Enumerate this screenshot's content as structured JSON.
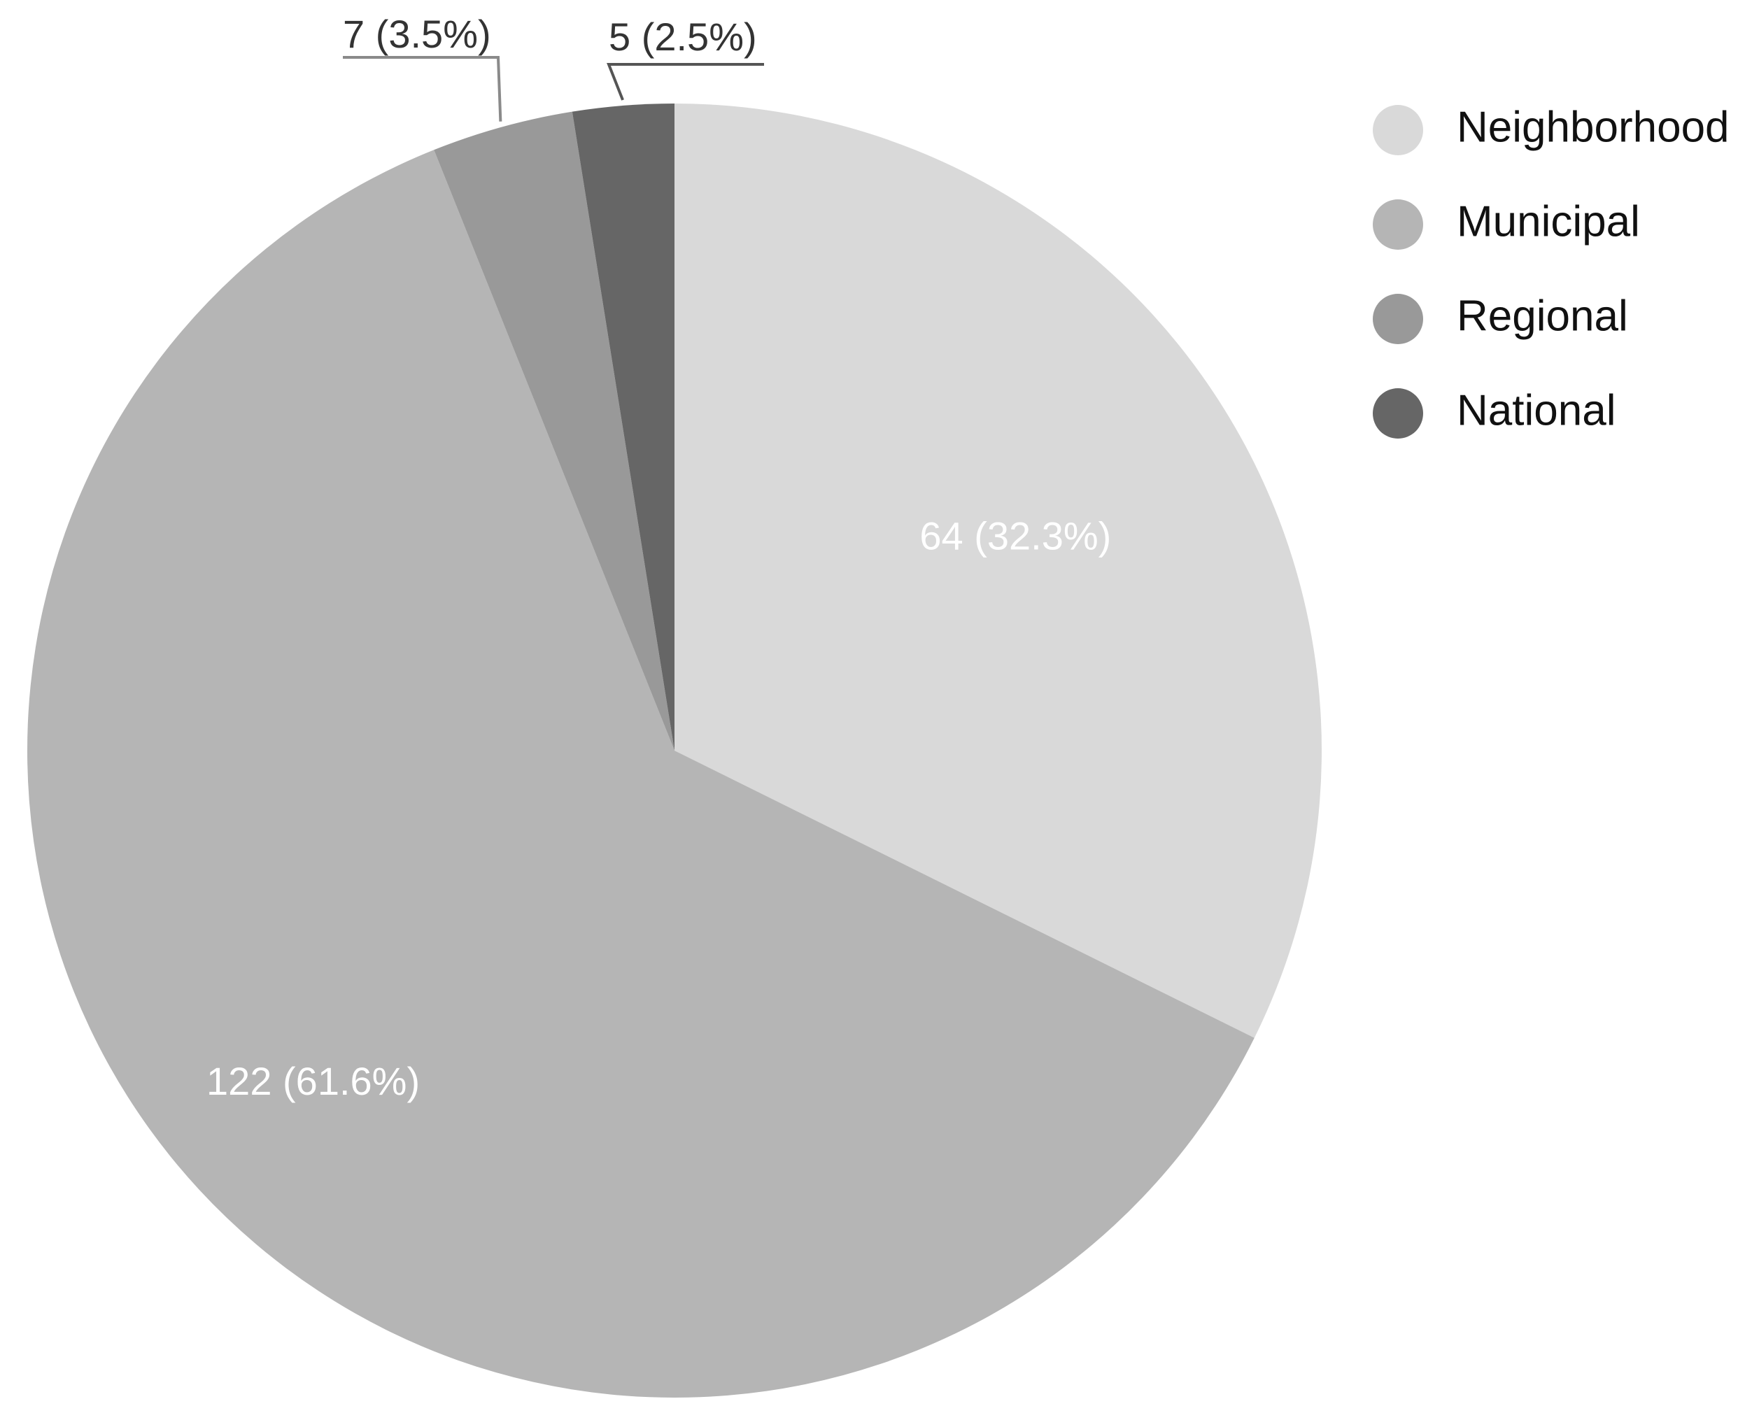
{
  "chart_data": {
    "type": "pie",
    "title": "",
    "start_angle_deg": 0,
    "direction": "clockwise",
    "slices": [
      {
        "name": "Neighborhood",
        "value": 64,
        "label": "64 (32.3%)",
        "color": "#d9d9d9",
        "label_style": "inside"
      },
      {
        "name": "Municipal",
        "value": 122,
        "label": "122 (61.6%)",
        "color": "#b5b5b5",
        "label_style": "inside"
      },
      {
        "name": "Regional",
        "value": 7,
        "label": "7 (3.5%)",
        "color": "#999999",
        "label_style": "outside"
      },
      {
        "name": "National",
        "value": 5,
        "label": "5 (2.5%)",
        "color": "#666666",
        "label_style": "outside"
      }
    ],
    "legend": {
      "position": "top-right",
      "entries": [
        "Neighborhood",
        "Municipal",
        "Regional",
        "National"
      ]
    }
  }
}
